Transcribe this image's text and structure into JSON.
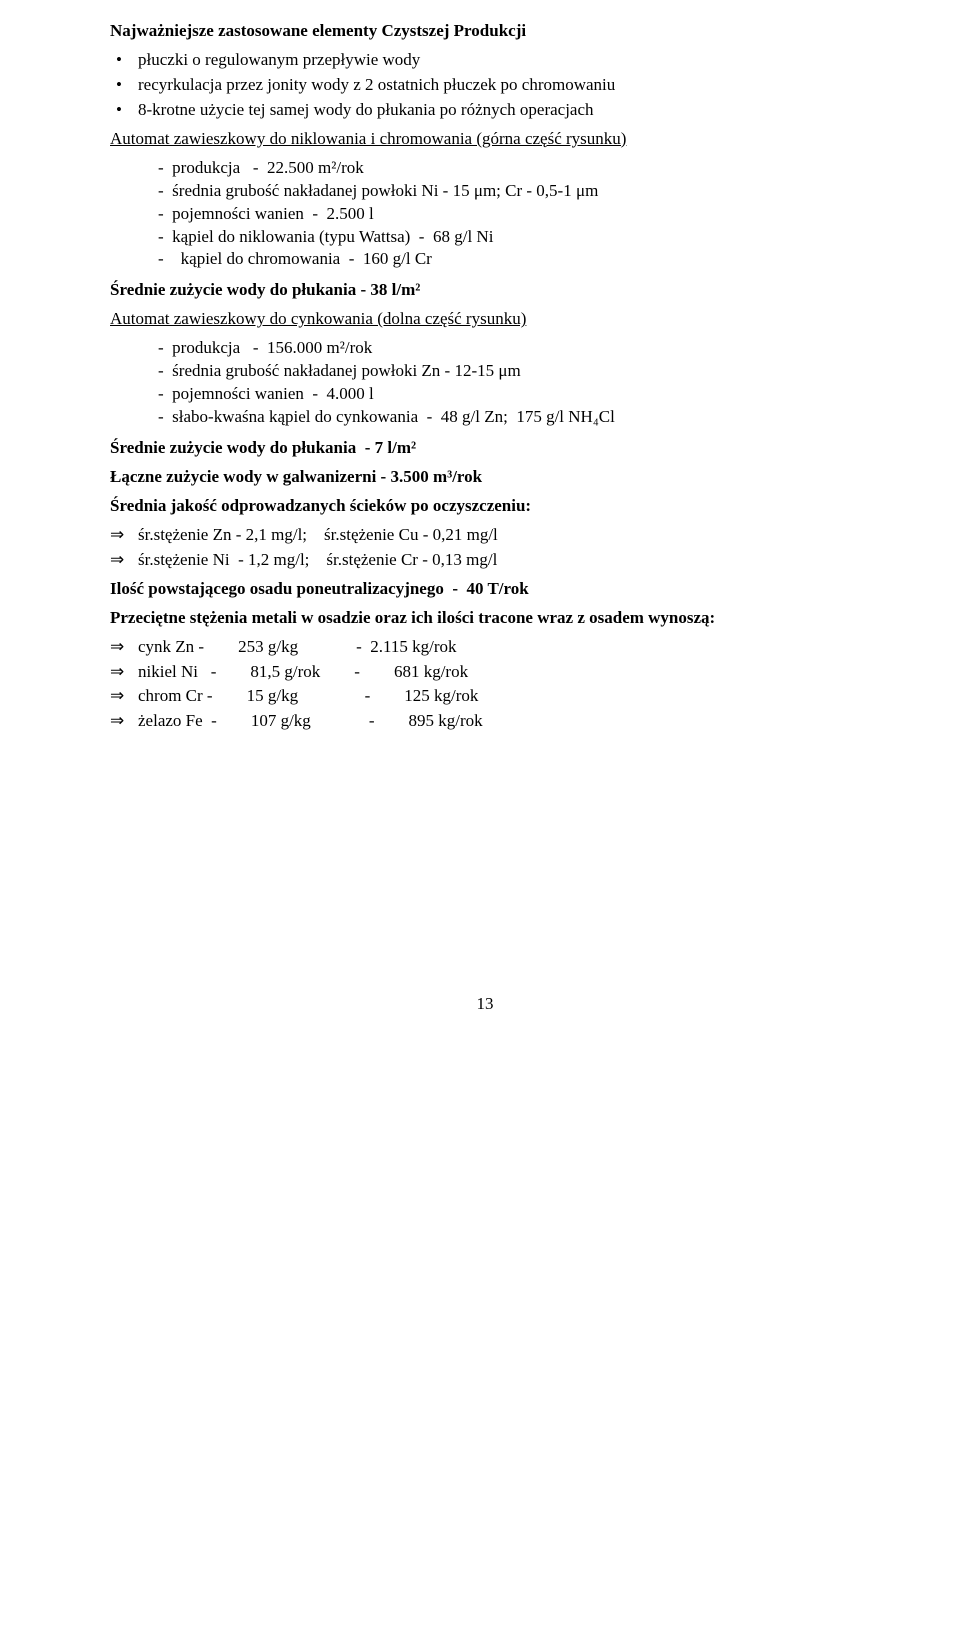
{
  "title": "Najważniejsze zastosowane elementy Czystszej Produkcji",
  "bullet_items": [
    "płuczki o regulowanym przepływie wody",
    "recyrkulacja przez jonity wody z 2 ostatnich płuczek po chromowaniu",
    "8-krotne użycie tej samej wody do płukania po różnych operacjach"
  ],
  "automat1": {
    "heading": "Automat zawieszkowy do niklowania i chromowania (górna część rysunku)",
    "lines": [
      "-  produkcja   -  22.500 m²/rok",
      "-  średnia grubość nakładanej powłoki Ni - 15 μm; Cr - 0,5-1 μm",
      "-  pojemności wanien  -  2.500 l",
      "-  kąpiel do niklowania (typu Wattsa)  -  68 g/l Ni",
      "-    kąpiel do chromowania  -  160 g/l Cr"
    ]
  },
  "avg_use_1": "Średnie zużycie wody do płukania - 38 l/m²",
  "automat2": {
    "heading": "Automat zawieszkowy do cynkowania (dolna część rysunku)",
    "lines": [
      "-  produkcja   -  156.000 m²/rok",
      "-  średnia grubość nakładanej powłoki Zn - 12-15 μm",
      "-  pojemności wanien  -  4.000 l",
      "-  słabo-kwaśna kąpiel do cynkowania  -  48 g/l Zn;  175 g/l NH₄Cl"
    ]
  },
  "avg_use_2": "Średnie zużycie wody do płukania  - 7 l/m²",
  "total_use": "Łączne zużycie wody w galwanizerni - 3.500 m³/rok",
  "quality_heading": "Średnia jakość odprowadzanych ścieków po oczyszczeniu:",
  "quality_lines": [
    "śr.stężenie Zn - 2,1 mg/l;    śr.stężenie Cu - 0,21 mg/l",
    "śr.stężenie Ni  - 1,2 mg/l;    śr.stężenie Cr - 0,13 mg/l"
  ],
  "sludge": "Ilość powstającego osadu poneutralizacyjnego  -  40 T/rok",
  "metals_heading": "Przeciętne stężenia metali w osadzie oraz ich ilości tracone wraz z osadem wynoszą:",
  "metal_rows": [
    {
      "name": "cynk Zn -",
      "gkg": "253 g/kg",
      "kgrok": "2.115 kg/rok"
    },
    {
      "name": "nikiel Ni   -",
      "gkg": "81,5 g/rok",
      "kgrok": "681 kg/rok"
    },
    {
      "name": "chrom Cr -",
      "gkg": "15 g/kg",
      "kgrok": "125 kg/rok"
    },
    {
      "name": "żelazo Fe  -",
      "gkg": "107 g/kg",
      "kgrok": "895 kg/rok"
    }
  ],
  "page_number": "13"
}
